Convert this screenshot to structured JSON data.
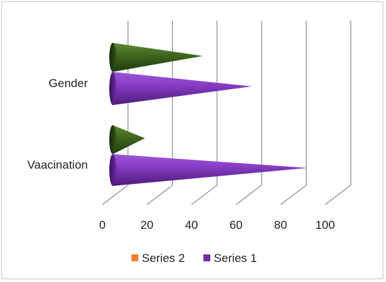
{
  "chart_data": {
    "type": "bar",
    "orientation": "horizontal",
    "shape": "cone",
    "categories": [
      "Gender",
      "Vaacination"
    ],
    "series": [
      {
        "name": "Series 2",
        "values": [
          42,
          16
        ],
        "color": "#385d1c",
        "legend_color": "#ed7d31"
      },
      {
        "name": "Series 1",
        "values": [
          64,
          89
        ],
        "color": "#7030a0",
        "legend_color": "#7030a0"
      }
    ],
    "xlim": [
      0,
      100
    ],
    "xticks": [
      0,
      20,
      40,
      60,
      80,
      100
    ],
    "grid": true,
    "legend_position": "bottom"
  }
}
